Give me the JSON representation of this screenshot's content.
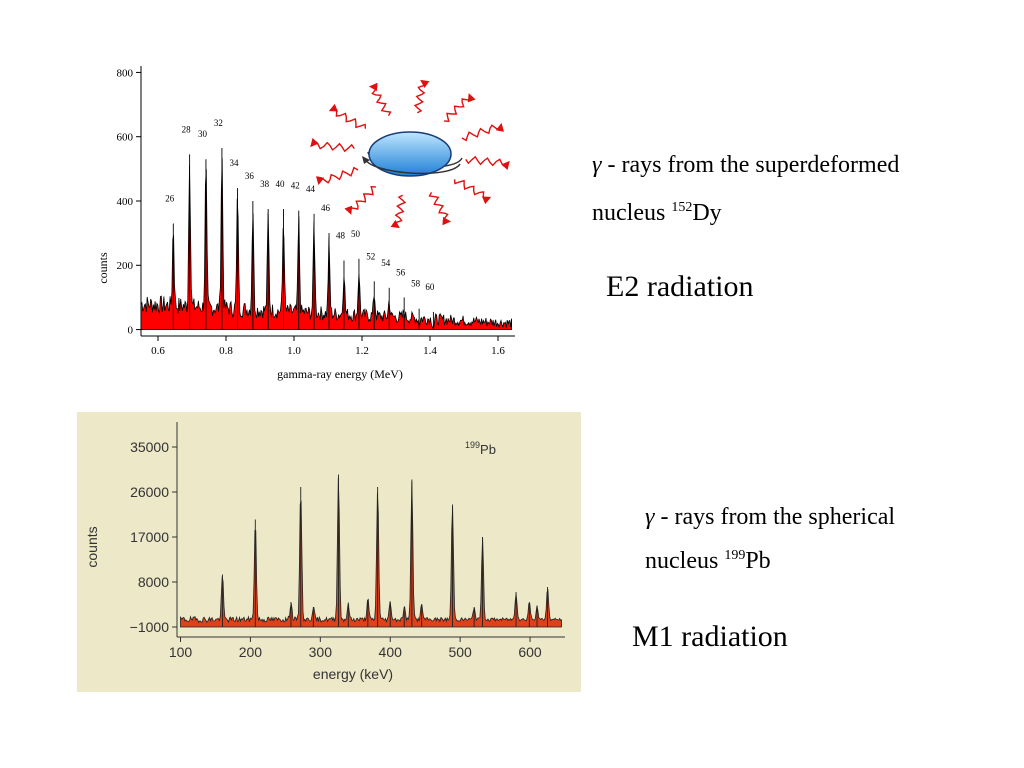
{
  "colors": {
    "chart1_fill": "#ff0000",
    "chart1_line": "#000000",
    "chart2_fill": "#e0401a",
    "chart2_bg": "#ece8c8",
    "nucleus_top": "#bfe6ff",
    "nucleus_bottom": "#1e7fd6",
    "ray_color": "#e01010"
  },
  "chart_data": [
    {
      "type": "area",
      "title": "",
      "xlabel": "gamma-ray energy (MeV)",
      "ylabel": "counts",
      "xlim": [
        0.55,
        1.65
      ],
      "ylim": [
        -20,
        820
      ],
      "xticks": [
        0.6,
        0.8,
        1.0,
        1.2,
        1.4,
        1.6
      ],
      "xtick_labels": [
        "0.6",
        "0.8",
        "1.0",
        "1.2",
        "1.4",
        "1.6"
      ],
      "yticks": [
        0,
        200,
        400,
        600,
        800
      ],
      "ytick_labels": [
        "0",
        "200",
        "400",
        "600",
        "800"
      ],
      "background_counts": {
        "start": 80,
        "end": 20
      },
      "peaks": [
        {
          "label": "26",
          "energy": 0.645,
          "counts": 330
        },
        {
          "label": "28",
          "energy": 0.693,
          "counts": 545
        },
        {
          "label": "30",
          "energy": 0.741,
          "counts": 530
        },
        {
          "label": "32",
          "energy": 0.788,
          "counts": 565
        },
        {
          "label": "34",
          "energy": 0.834,
          "counts": 440
        },
        {
          "label": "36",
          "energy": 0.879,
          "counts": 400
        },
        {
          "label": "38",
          "energy": 0.924,
          "counts": 375
        },
        {
          "label": "40",
          "energy": 0.969,
          "counts": 375
        },
        {
          "label": "42",
          "energy": 1.014,
          "counts": 370
        },
        {
          "label": "44",
          "energy": 1.059,
          "counts": 360
        },
        {
          "label": "46",
          "energy": 1.103,
          "counts": 300
        },
        {
          "label": "48",
          "energy": 1.147,
          "counts": 215
        },
        {
          "label": "50",
          "energy": 1.191,
          "counts": 220
        },
        {
          "label": "52",
          "energy": 1.236,
          "counts": 150
        },
        {
          "label": "54",
          "energy": 1.28,
          "counts": 130
        },
        {
          "label": "56",
          "energy": 1.324,
          "counts": 100
        },
        {
          "label": "58",
          "energy": 1.368,
          "counts": 65
        },
        {
          "label": "60",
          "energy": 1.41,
          "counts": 55
        }
      ]
    },
    {
      "type": "area",
      "title": "",
      "annotation": {
        "mass": "199",
        "element": "Pb"
      },
      "xlabel": "energy (keV)",
      "ylabel": "counts",
      "xlim": [
        95,
        650
      ],
      "ylim": [
        -3000,
        40000
      ],
      "xticks": [
        100,
        200,
        300,
        400,
        500,
        600
      ],
      "xtick_labels": [
        "100",
        "200",
        "300",
        "400",
        "500",
        "600"
      ],
      "yticks": [
        -1000,
        8000,
        17000,
        26000,
        35000
      ],
      "ytick_labels": [
        "−1000",
        "8000",
        "17000",
        "26000",
        "35000"
      ],
      "background_counts": {
        "start": 500,
        "end": 500
      },
      "peaks": [
        {
          "energy": 160,
          "counts": 9500
        },
        {
          "energy": 207,
          "counts": 20500
        },
        {
          "energy": 258,
          "counts": 4000
        },
        {
          "energy": 272,
          "counts": 27000
        },
        {
          "energy": 290,
          "counts": 3000
        },
        {
          "energy": 326,
          "counts": 29500
        },
        {
          "energy": 340,
          "counts": 3500
        },
        {
          "energy": 368,
          "counts": 4500
        },
        {
          "energy": 382,
          "counts": 27000
        },
        {
          "energy": 400,
          "counts": 4000
        },
        {
          "energy": 420,
          "counts": 3000
        },
        {
          "energy": 431,
          "counts": 28500
        },
        {
          "energy": 445,
          "counts": 3500
        },
        {
          "energy": 489,
          "counts": 23500
        },
        {
          "energy": 520,
          "counts": 3000
        },
        {
          "energy": 532,
          "counts": 17000
        },
        {
          "energy": 580,
          "counts": 6000
        },
        {
          "energy": 599,
          "counts": 4000
        },
        {
          "energy": 610,
          "counts": 3000
        },
        {
          "energy": 625,
          "counts": 7000
        }
      ]
    }
  ],
  "captions": {
    "top": {
      "gamma": "γ",
      "line1_rest": " - rays from the superdeformed",
      "line2_word": "nucleus ",
      "mass": "152",
      "element": "Dy",
      "radiation": "E2 radiation"
    },
    "bottom": {
      "gamma": "γ",
      "line1_rest": " - rays from the spherical",
      "line2_word": "nucleus ",
      "mass": "199",
      "element": "Pb",
      "radiation": "M1 radiation"
    }
  }
}
